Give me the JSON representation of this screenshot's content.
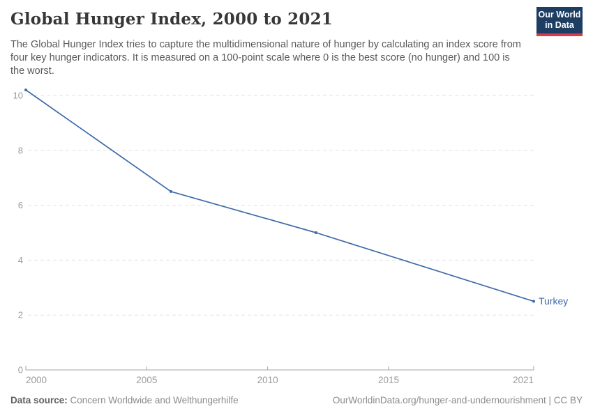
{
  "header": {
    "title": "Global Hunger Index, 2000 to 2021",
    "subtitle": "The Global Hunger Index tries to capture the multidimensional nature of hunger by calculating an index score from four key hunger indicators. It is measured on a 100-point scale where 0 is the best score (no hunger) and 100 is the worst."
  },
  "logo": {
    "line1": "Our World",
    "line2": "in Data",
    "bg_color": "#1d3d63",
    "bar_color": "#d73c4c"
  },
  "chart_data": {
    "type": "line",
    "title": "Global Hunger Index, 2000 to 2021",
    "xlabel": "",
    "ylabel": "",
    "xlim": [
      2000,
      2021
    ],
    "ylim": [
      0,
      10.2
    ],
    "x_ticks": [
      2000,
      2005,
      2010,
      2015,
      2021
    ],
    "y_ticks": [
      0,
      2,
      4,
      6,
      8,
      10
    ],
    "grid": "horizontal-dashed",
    "legend_position": "end-of-line-label",
    "series": [
      {
        "name": "Turkey",
        "color": "#3d6aa8",
        "x": [
          2000,
          2006,
          2012,
          2021
        ],
        "values": [
          10.2,
          6.5,
          5.0,
          2.5
        ]
      }
    ]
  },
  "colors": {
    "gridline": "#e0e0e0",
    "axis": "#a5a5a5",
    "tick_label": "#9a9a9a"
  },
  "footer": {
    "source_label": "Data source:",
    "source_value": "Concern Worldwide and Welthungerhilfe",
    "credit": "OurWorldinData.org/hunger-and-undernourishment | CC BY"
  }
}
